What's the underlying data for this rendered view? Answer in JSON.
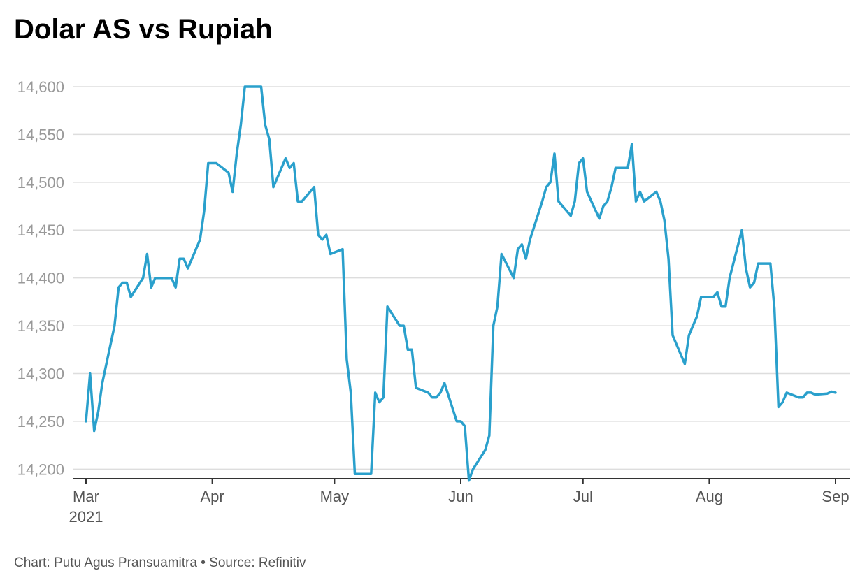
{
  "title": "Dolar AS vs Rupiah",
  "footer": {
    "credit": "Chart: Putu Agus Pransuamitra",
    "separator": "•",
    "source": "Source: Refinitiv"
  },
  "colors": {
    "line": "#2aa0cc",
    "grid": "#dddddd",
    "axis": "#333333",
    "y_tick_text": "#999999",
    "x_tick_text": "#555555"
  },
  "chart_data": {
    "type": "line",
    "title": "Dolar AS vs Rupiah",
    "xlabel": "",
    "ylabel": "",
    "ylim": [
      14190,
      14600
    ],
    "xlim": [
      "2021-03-01",
      "2021-09-01"
    ],
    "grid": true,
    "legend": "none",
    "y_ticks": [
      14200,
      14250,
      14300,
      14350,
      14400,
      14450,
      14500,
      14550,
      14600
    ],
    "x_ticks": [
      {
        "date": "2021-03-01",
        "label": "Mar",
        "sublabel": "2021"
      },
      {
        "date": "2021-04-01",
        "label": "Apr",
        "sublabel": ""
      },
      {
        "date": "2021-05-01",
        "label": "May",
        "sublabel": ""
      },
      {
        "date": "2021-06-01",
        "label": "Jun",
        "sublabel": ""
      },
      {
        "date": "2021-07-01",
        "label": "Jul",
        "sublabel": ""
      },
      {
        "date": "2021-08-01",
        "label": "Aug",
        "sublabel": ""
      },
      {
        "date": "2021-09-01",
        "label": "Sep",
        "sublabel": ""
      }
    ],
    "series": [
      {
        "x": [
          "2021-03-01",
          "2021-03-02",
          "2021-03-03",
          "2021-03-04",
          "2021-03-05",
          "2021-03-08",
          "2021-03-09",
          "2021-03-10",
          "2021-03-11",
          "2021-03-12",
          "2021-03-15",
          "2021-03-16",
          "2021-03-17",
          "2021-03-18",
          "2021-03-19",
          "2021-03-22",
          "2021-03-23",
          "2021-03-24",
          "2021-03-25",
          "2021-03-26",
          "2021-03-29",
          "2021-03-30",
          "2021-03-31",
          "2021-04-01",
          "2021-04-02",
          "2021-04-05",
          "2021-04-06",
          "2021-04-07",
          "2021-04-08",
          "2021-04-09",
          "2021-04-12",
          "2021-04-13",
          "2021-04-14",
          "2021-04-15",
          "2021-04-16",
          "2021-04-19",
          "2021-04-20",
          "2021-04-21",
          "2021-04-22",
          "2021-04-23",
          "2021-04-26",
          "2021-04-27",
          "2021-04-28",
          "2021-04-29",
          "2021-04-30",
          "2021-05-03",
          "2021-05-04",
          "2021-05-05",
          "2021-05-06",
          "2021-05-07",
          "2021-05-10",
          "2021-05-11",
          "2021-05-12",
          "2021-05-13",
          "2021-05-14",
          "2021-05-17",
          "2021-05-18",
          "2021-05-19",
          "2021-05-20",
          "2021-05-21",
          "2021-05-24",
          "2021-05-25",
          "2021-05-26",
          "2021-05-27",
          "2021-05-28",
          "2021-05-31",
          "2021-06-01",
          "2021-06-02",
          "2021-06-03",
          "2021-06-04",
          "2021-06-07",
          "2021-06-08",
          "2021-06-09",
          "2021-06-10",
          "2021-06-11",
          "2021-06-14",
          "2021-06-15",
          "2021-06-16",
          "2021-06-17",
          "2021-06-18",
          "2021-06-21",
          "2021-06-22",
          "2021-06-23",
          "2021-06-24",
          "2021-06-25",
          "2021-06-28",
          "2021-06-29",
          "2021-06-30",
          "2021-07-01",
          "2021-07-02",
          "2021-07-05",
          "2021-07-06",
          "2021-07-07",
          "2021-07-08",
          "2021-07-09",
          "2021-07-12",
          "2021-07-13",
          "2021-07-14",
          "2021-07-15",
          "2021-07-16",
          "2021-07-19",
          "2021-07-20",
          "2021-07-21",
          "2021-07-22",
          "2021-07-23",
          "2021-07-26",
          "2021-07-27",
          "2021-07-28",
          "2021-07-29",
          "2021-07-30",
          "2021-08-02",
          "2021-08-03",
          "2021-08-04",
          "2021-08-05",
          "2021-08-06",
          "2021-08-09",
          "2021-08-10",
          "2021-08-11",
          "2021-08-12",
          "2021-08-13",
          "2021-08-16",
          "2021-08-17",
          "2021-08-18",
          "2021-08-19",
          "2021-08-20",
          "2021-08-23",
          "2021-08-24",
          "2021-08-25",
          "2021-08-26",
          "2021-08-27",
          "2021-08-30",
          "2021-08-31",
          "2021-09-01"
        ],
        "values": [
          14250,
          14300,
          14240,
          14260,
          14290,
          14350,
          14390,
          14395,
          14395,
          14380,
          14400,
          14425,
          14390,
          14400,
          14400,
          14400,
          14390,
          14420,
          14420,
          14410,
          14440,
          14470,
          14520,
          14520,
          14520,
          14510,
          14490,
          14530,
          14560,
          14600,
          14600,
          14600,
          14560,
          14545,
          14495,
          14525,
          14515,
          14520,
          14480,
          14480,
          14495,
          14445,
          14440,
          14445,
          14425,
          14430,
          14315,
          14280,
          14195,
          14195,
          14195,
          14280,
          14270,
          14275,
          14370,
          14350,
          14350,
          14325,
          14325,
          14285,
          14280,
          14275,
          14275,
          14280,
          14290,
          14250,
          14250,
          14245,
          14188,
          14200,
          14220,
          14235,
          14350,
          14370,
          14425,
          14400,
          14430,
          14435,
          14420,
          14440,
          14480,
          14495,
          14500,
          14530,
          14480,
          14465,
          14480,
          14520,
          14525,
          14490,
          14462,
          14475,
          14480,
          14495,
          14515,
          14515,
          14540,
          14480,
          14490,
          14480,
          14490,
          14480,
          14460,
          14420,
          14340,
          14310,
          14340,
          14350,
          14360,
          14380,
          14380,
          14385,
          14370,
          14370,
          14400,
          14450,
          14410,
          14390,
          14395,
          14415,
          14415,
          14368,
          14265,
          14270,
          14280,
          14275,
          14275,
          14280,
          14280,
          14278,
          14279,
          14281,
          14280
        ]
      }
    ]
  }
}
